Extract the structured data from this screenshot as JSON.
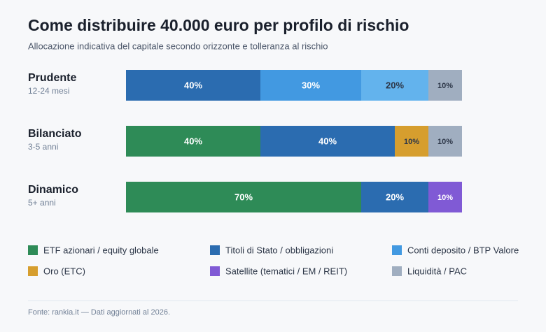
{
  "chart_data": {
    "type": "stacked_bar",
    "title": "Come distribuire 40.000 euro per profilo di rischio",
    "subtitle": "Allocazione indicativa del capitale secondo orizzonte e tolleranza al rischio",
    "xlim": [
      0,
      100
    ],
    "rows": [
      {
        "label": "Prudente",
        "note": "12-24 mesi",
        "values": [
          40,
          30,
          20,
          10
        ],
        "value_labels": [
          "40%",
          "30%",
          "20%",
          "10%"
        ],
        "colors": [
          "#2b6cb0",
          "#4299e1",
          "#63b3ed",
          "#a0aec0"
        ]
      },
      {
        "label": "Bilanciato",
        "note": "3-5 anni",
        "values": [
          40,
          40,
          10,
          10
        ],
        "value_labels": [
          "40%",
          "40%",
          "10%",
          "10%"
        ],
        "colors": [
          "#2e8b57",
          "#2b6cb0",
          "#d69e2e",
          "#a0aec0"
        ]
      },
      {
        "label": "Dinamico",
        "note": "5+ anni",
        "values": [
          70,
          20,
          10
        ],
        "value_labels": [
          "70%",
          "20%",
          "10%"
        ],
        "colors": [
          "#2e8b57",
          "#2b6cb0",
          "#805ad5"
        ]
      }
    ],
    "legend": [
      {
        "name": "ETF azionari / equity globale",
        "color": "#2e8b57"
      },
      {
        "name": "Titoli di Stato / obbligazioni",
        "color": "#2b6cb0"
      },
      {
        "name": "Conti deposito / BTP Valore",
        "color": "#4299e1"
      },
      {
        "name": "Oro (ETC)",
        "color": "#d69e2e"
      },
      {
        "name": "Satellite (tematici / EM / REIT)",
        "color": "#805ad5"
      },
      {
        "name": "Liquidità / PAC",
        "color": "#a0aec0"
      }
    ],
    "source": "Fonte: rankia.it — Dati aggiornati al 2026."
  }
}
